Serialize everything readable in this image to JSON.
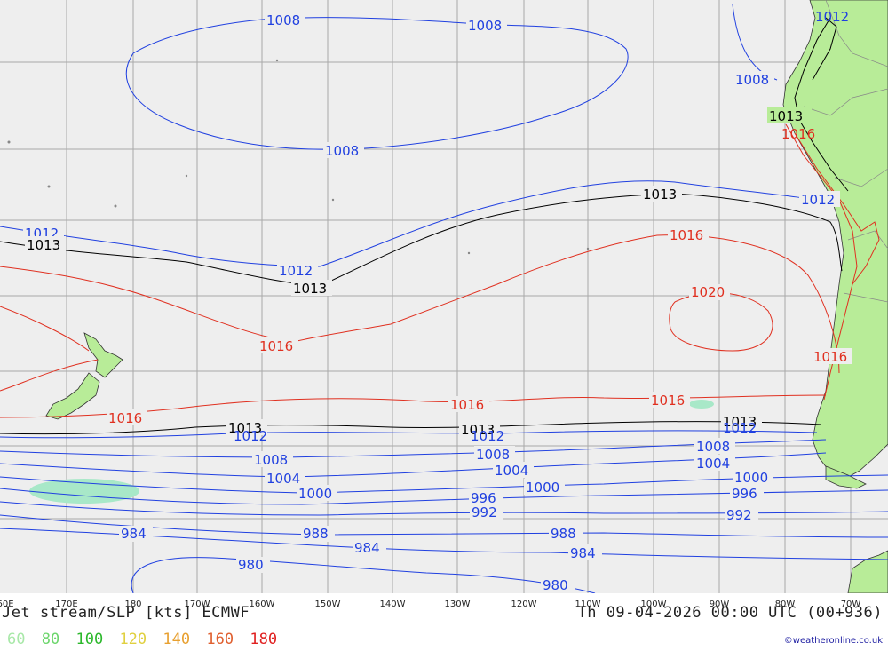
{
  "footer": {
    "title": "Jet stream/SLP [kts] ECMWF",
    "datetime": "Th 09-04-2026 00:00 UTC (00+936)",
    "credit": "©weatheronline.co.uk"
  },
  "legend": [
    {
      "label": "60",
      "color": "#a8e8a8"
    },
    {
      "label": "80",
      "color": "#6cd66c"
    },
    {
      "label": "100",
      "color": "#2cb82c"
    },
    {
      "label": "120",
      "color": "#e0d040"
    },
    {
      "label": "140",
      "color": "#e8a030"
    },
    {
      "label": "160",
      "color": "#e06030"
    },
    {
      "label": "180",
      "color": "#e02020"
    }
  ],
  "lon_ticks": [
    "60E",
    "170E",
    "180",
    "170W",
    "160W",
    "150W",
    "140W",
    "130W",
    "120W",
    "110W",
    "100W",
    "90W",
    "80W",
    "70W"
  ],
  "isobar_labels": {
    "l1008a": "1008",
    "l1008b": "1008",
    "l1008c": "1008",
    "l1008d": "1008",
    "l1012a": "1012",
    "l1012b": "1012",
    "l1012c": "1012",
    "l1012d": "1012",
    "l1013a": "1013",
    "l1013b": "1013",
    "l1013c": "1013",
    "l1013d": "1013",
    "l1013e": "1013",
    "l1013f": "1013",
    "l1013g": "1013",
    "l1016a": "1016",
    "l1016b": "1016",
    "l1016c": "1016",
    "l1016d": "1016",
    "l1016e": "1016",
    "l1016f": "1016",
    "l1016g": "1016",
    "l1020": "1020",
    "l1012e": "1012",
    "l1012f": "1012",
    "l1012g": "1012",
    "l1008e": "1008",
    "l1008f": "1008",
    "l1008g": "1008",
    "l1004a": "1004",
    "l1004b": "1004",
    "l1004c": "1004",
    "l1000a": "1000",
    "l1000b": "1000",
    "l1000c": "1000",
    "l996a": "996",
    "l996b": "996",
    "l992a": "992",
    "l992b": "992",
    "l988a": "988",
    "l988b": "988",
    "l984a": "984",
    "l984b": "984",
    "l984c": "984",
    "l980a": "980",
    "l980b": "980"
  },
  "colors": {
    "ocean": "#eeeeee",
    "land": "#b8ec98",
    "grid": "#a8a8a8",
    "isobar_low": "#2040e0",
    "isobar_mid": "#000000",
    "isobar_high": "#e03020",
    "jet_60": "#a8e8c8"
  }
}
